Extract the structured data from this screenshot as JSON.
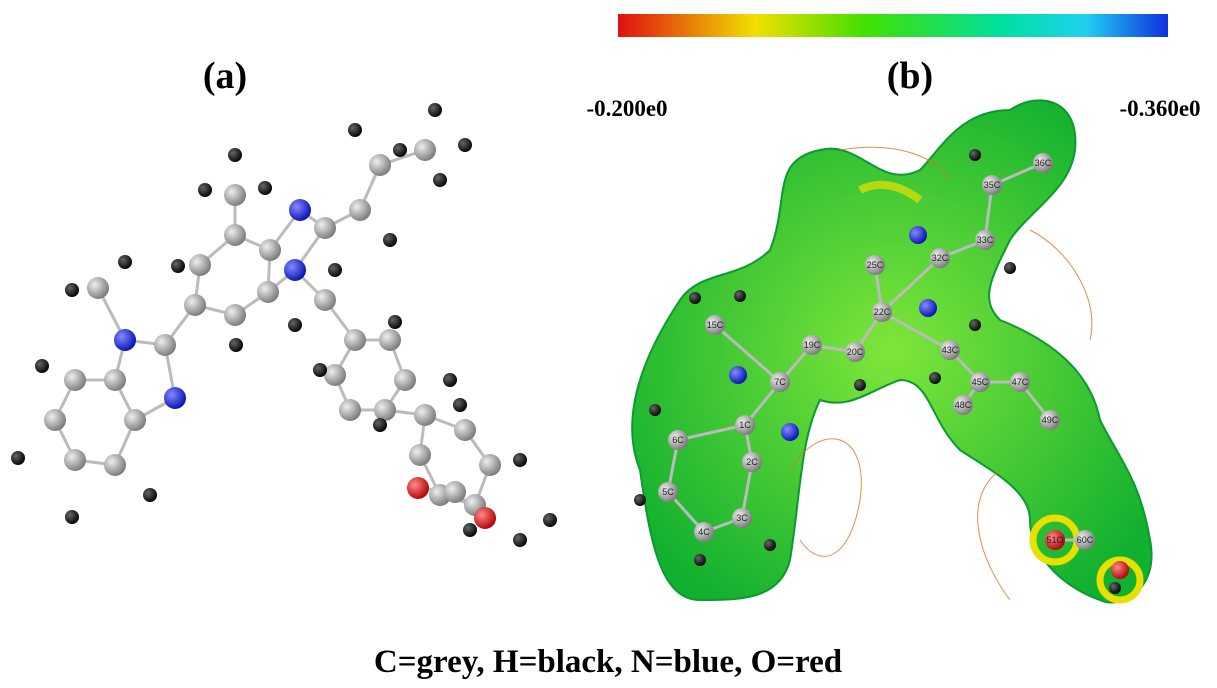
{
  "panel_a": {
    "label": "(a)"
  },
  "panel_b": {
    "label": "(b)",
    "scale_min_label": "-0.200e0",
    "scale_max_label": "-0.360e0",
    "atom_labels": [
      "15C",
      "19C",
      "20C",
      "22C",
      "7C",
      "1C",
      "2C",
      "6C",
      "5C",
      "4C",
      "3C",
      "25C",
      "32C",
      "33C",
      "35C",
      "36C",
      "43C",
      "45C",
      "47C",
      "48C",
      "49C",
      "51O",
      "60C"
    ]
  },
  "caption": "C=grey, H=black, N=blue, O=red"
}
